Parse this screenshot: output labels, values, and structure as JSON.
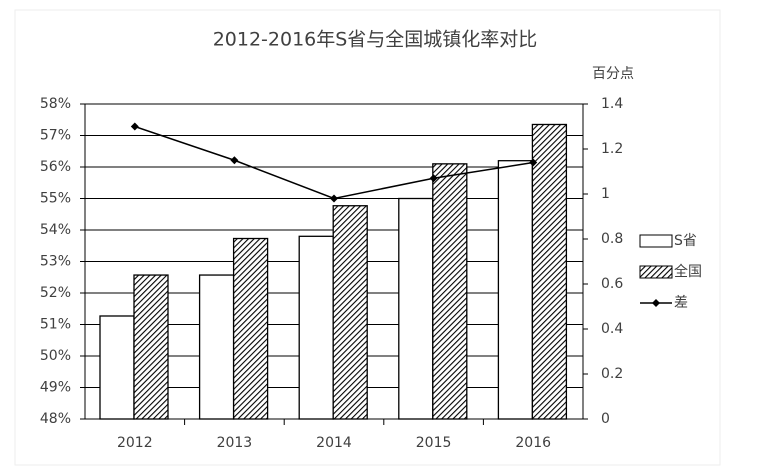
{
  "chart_data": {
    "type": "bar-line",
    "title": "2012-2016年S省与全国城镇化率对比",
    "y2_label": "百分点",
    "categories": [
      "2012",
      "2013",
      "2014",
      "2015",
      "2016"
    ],
    "series": [
      {
        "name": "S省",
        "type": "bar",
        "color": "#ffffff",
        "values": [
          51.27,
          52.57,
          53.8,
          55.0,
          56.2
        ]
      },
      {
        "name": "全国",
        "type": "bar",
        "color": "#000000",
        "pattern": "hatch",
        "values": [
          52.57,
          53.73,
          54.77,
          56.1,
          57.35
        ]
      },
      {
        "name": "差",
        "type": "line",
        "color": "#000000",
        "axis": "y2",
        "values": [
          1.3,
          1.15,
          0.98,
          1.07,
          1.14
        ]
      }
    ],
    "ylim": [
      48,
      58
    ],
    "yticks": [
      {
        "value": 48,
        "label": "48%"
      },
      {
        "value": 49,
        "label": "49%"
      },
      {
        "value": 50,
        "label": "50%"
      },
      {
        "value": 51,
        "label": "51%"
      },
      {
        "value": 52,
        "label": "52%"
      },
      {
        "value": 53,
        "label": "53%"
      },
      {
        "value": 54,
        "label": "54%"
      },
      {
        "value": 55,
        "label": "55%"
      },
      {
        "value": 56,
        "label": "56%"
      },
      {
        "value": 57,
        "label": "57%"
      },
      {
        "value": 58,
        "label": "58%"
      }
    ],
    "y2lim": [
      0,
      1.4
    ],
    "y2ticks": [
      0,
      0.2,
      0.4,
      0.6,
      0.8,
      1,
      1.2,
      1.4
    ],
    "grid": true
  }
}
